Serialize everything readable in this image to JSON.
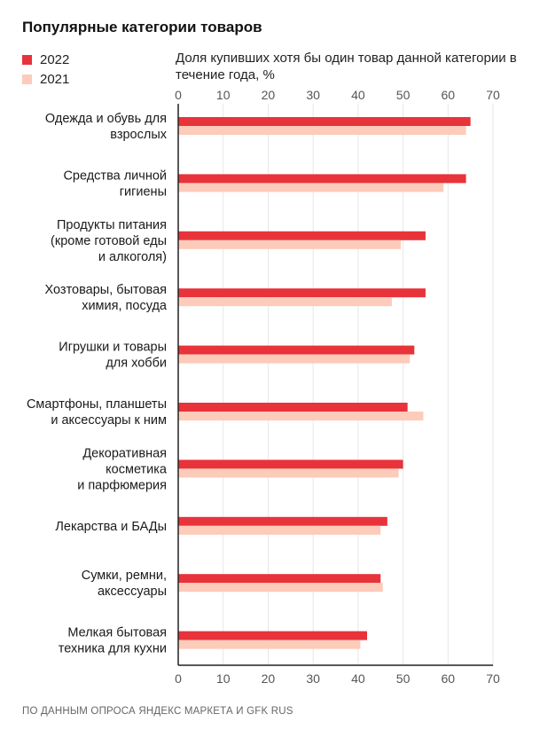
{
  "title": "Популярные категории товаров",
  "subtitle": "Доля купивших хотя бы один товар данной категории в течение года, %",
  "source": "ПО ДАННЫМ ОПРОСА ЯНДЕКС МАРКЕТА И GFK RUS",
  "colors": {
    "2022": "#e8333a",
    "2021": "#fdcbb9",
    "axis": "#222222",
    "grid": "#e6e6e6"
  },
  "chart_data": {
    "type": "bar",
    "orientation": "horizontal",
    "title": "Популярные категории товаров",
    "subtitle": "Доля купивших хотя бы один товар данной категории в течение года, %",
    "xlim": [
      0,
      70
    ],
    "xticks": [
      "0",
      "10",
      "20",
      "30",
      "40",
      "50",
      "60",
      "70"
    ],
    "grid": true,
    "legend_placement": "top-left",
    "categories": [
      [
        "Одежда и обувь для",
        "взрослых"
      ],
      [
        "Средства личной",
        "гигиены"
      ],
      [
        "Продукты питания",
        "(кроме готовой еды",
        "и алкоголя)"
      ],
      [
        "Хозтовары, бытовая",
        "химия, посуда"
      ],
      [
        "Игрушки и товары",
        "для хобби"
      ],
      [
        "Смартфоны, планшеты",
        "и аксессуары к ним"
      ],
      [
        "Декоративная",
        "косметика",
        "и парфюмерия"
      ],
      [
        "Лекарства и БАДы"
      ],
      [
        "Сумки, ремни,",
        "аксессуары"
      ],
      [
        "Мелкая бытовая",
        "техника для кухни"
      ]
    ],
    "series": [
      {
        "name": "2022",
        "values": [
          65,
          64,
          55,
          55,
          52.5,
          51,
          50,
          46.5,
          45,
          42
        ]
      },
      {
        "name": "2021",
        "values": [
          64,
          59,
          49.5,
          47.5,
          51.5,
          54.5,
          49,
          45,
          45.5,
          40.5
        ]
      }
    ]
  }
}
